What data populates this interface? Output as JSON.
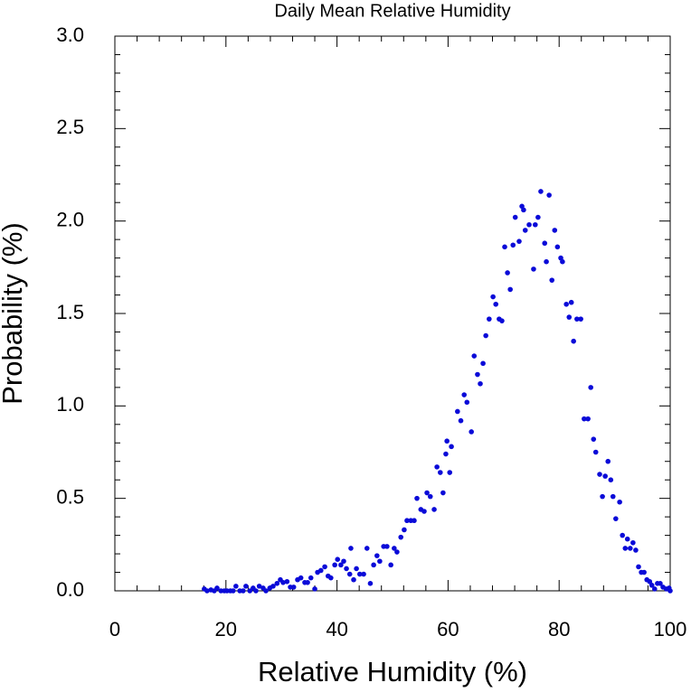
{
  "chart_data": {
    "type": "scatter",
    "title": "Daily Mean Relative Humidity",
    "x_label": "Relative Humidity (%)",
    "y_label": "Probability (%)",
    "color": "#0a0ad8",
    "xlim": [
      0,
      100
    ],
    "ylim": [
      0,
      3.0
    ],
    "xticks": [
      0,
      20,
      40,
      60,
      80,
      100
    ],
    "yticks": [
      {
        "value": 0,
        "label": "0.0"
      },
      {
        "value": 0.5,
        "label": "0.5"
      },
      {
        "value": 1.0,
        "label": "1.0"
      },
      {
        "value": 1.5,
        "label": "1.5"
      },
      {
        "value": 2.0,
        "label": "2.0"
      },
      {
        "value": 2.5,
        "label": "2.5"
      },
      {
        "value": 3.0,
        "label": "3.0"
      }
    ],
    "x_minor_ticks": [
      4,
      8,
      12,
      16,
      24,
      28,
      32,
      36,
      44,
      48,
      52,
      56,
      64,
      68,
      72,
      76,
      84,
      88,
      92,
      96
    ],
    "y_minor_ticks": [
      0.1,
      0.2,
      0.3,
      0.4,
      0.6,
      0.7,
      0.8,
      0.9,
      1.1,
      1.2,
      1.3,
      1.4,
      1.6,
      1.7,
      1.8,
      1.9,
      2.1,
      2.2,
      2.3,
      2.4,
      2.6,
      2.7,
      2.8,
      2.9
    ],
    "series": [
      {
        "x": [
          16.1,
          16.6,
          17.3,
          17.9,
          18.4,
          19.1,
          19.7,
          20.2,
          20.8,
          21.3,
          21.8,
          22.5,
          23.1,
          23.6,
          24.3,
          24.9,
          25.4,
          26.0,
          26.7,
          27.2,
          27.9,
          28.5,
          29.2,
          29.8,
          30.3,
          31.0,
          31.6,
          32.2,
          32.9,
          33.5,
          34.2,
          34.7,
          35.3,
          36.0,
          36.5,
          37.1,
          37.8,
          38.4,
          38.9,
          39.6,
          40.1,
          40.7,
          41.2,
          41.7,
          42.3,
          42.5,
          43.0,
          43.5,
          44.1,
          44.8,
          45.4,
          46.0,
          46.6,
          47.2,
          47.7,
          48.4,
          49.0,
          49.7,
          50.3,
          50.8,
          51.5,
          52.1,
          52.6,
          53.3,
          53.9,
          54.4,
          55.1,
          55.7,
          56.2,
          56.8,
          57.5,
          58.0,
          58.6,
          59.1,
          59.6,
          59.8,
          60.3,
          60.6,
          61.7,
          62.3,
          62.9,
          63.4,
          64.2,
          64.7,
          65.3,
          65.8,
          66.3,
          66.8,
          67.4,
          68.1,
          68.6,
          69.2,
          69.7,
          70.2,
          70.7,
          71.2,
          71.7,
          72.1,
          72.8,
          73.3,
          73.6,
          73.9,
          74.6,
          75.4,
          75.7,
          76.2,
          76.7,
          77.4,
          77.7,
          78.2,
          78.7,
          79.2,
          79.7,
          80.3,
          80.6,
          81.3,
          81.8,
          82.2,
          82.6,
          83.2,
          83.9,
          84.5,
          85.2,
          85.7,
          86.2,
          86.6,
          87.3,
          87.8,
          88.3,
          88.8,
          89.3,
          89.7,
          90.2,
          90.9,
          91.4,
          91.9,
          92.3,
          92.8,
          93.3,
          93.8,
          94.3,
          94.8,
          95.3,
          95.8,
          96.3,
          96.7,
          97.2,
          97.7,
          98.2,
          98.7,
          99.3,
          99.8,
          100.0
        ],
        "values": [
          0.01,
          0,
          0.005,
          0,
          0.015,
          0,
          0,
          0,
          0,
          0,
          0.025,
          0,
          0,
          0.025,
          0,
          0.015,
          0,
          0.025,
          0.015,
          0,
          0.015,
          0.025,
          0.04,
          0.06,
          0.045,
          0.05,
          0.02,
          0.02,
          0.06,
          0.07,
          0.045,
          0.045,
          0.07,
          0.01,
          0.1,
          0.11,
          0.13,
          0.08,
          0.07,
          0.14,
          0.17,
          0.14,
          0.16,
          0.12,
          0.09,
          0.23,
          0.06,
          0.12,
          0.09,
          0.09,
          0.23,
          0.04,
          0.14,
          0.19,
          0.16,
          0.24,
          0.24,
          0.14,
          0.23,
          0.21,
          0.29,
          0.33,
          0.38,
          0.38,
          0.38,
          0.5,
          0.44,
          0.43,
          0.53,
          0.51,
          0.44,
          0.67,
          0.64,
          0.53,
          0.74,
          0.81,
          0.64,
          0.78,
          0.97,
          0.92,
          1.06,
          1.02,
          0.86,
          1.27,
          1.17,
          1.12,
          1.23,
          1.38,
          1.47,
          1.59,
          1.55,
          1.47,
          1.46,
          1.86,
          1.72,
          1.63,
          1.87,
          2.02,
          1.89,
          2.08,
          2.06,
          1.95,
          1.98,
          1.74,
          1.98,
          2.02,
          2.16,
          1.88,
          1.78,
          2.14,
          1.68,
          1.95,
          1.86,
          1.8,
          1.78,
          1.55,
          1.48,
          1.56,
          1.35,
          1.47,
          1.47,
          0.93,
          0.93,
          1.1,
          0.82,
          0.75,
          0.63,
          0.51,
          0.62,
          0.7,
          0.6,
          0.51,
          0.39,
          0.48,
          0.3,
          0.23,
          0.28,
          0.23,
          0.26,
          0.22,
          0.13,
          0.1,
          0.1,
          0.06,
          0.05,
          0.03,
          0.01,
          0.04,
          0.04,
          0.02,
          0.01,
          0.015,
          0
        ]
      }
    ]
  }
}
